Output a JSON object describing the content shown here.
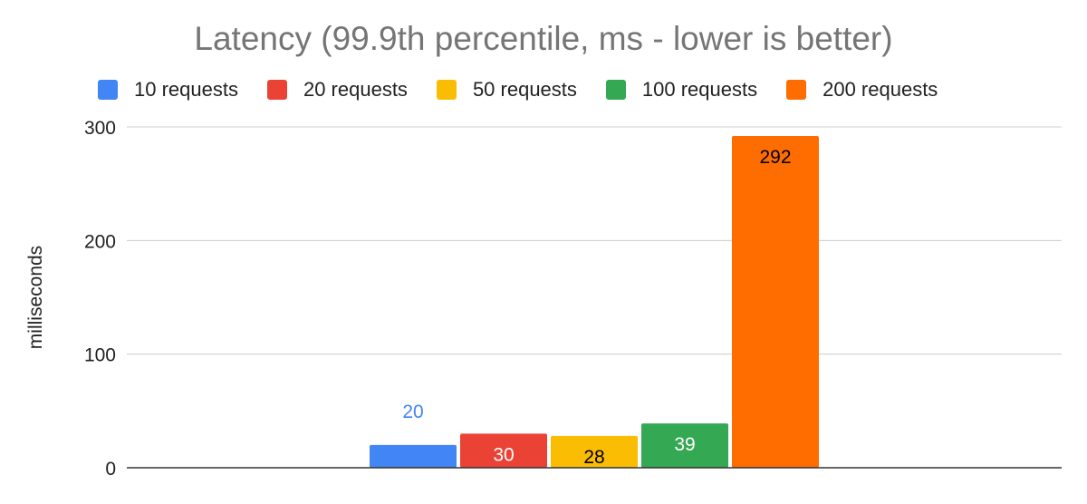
{
  "chart_data": {
    "type": "bar",
    "title": "Latency (99.9th percentile, ms - lower is better)",
    "ylabel": "milliseconds",
    "xlabel": "",
    "ylim": [
      0,
      300
    ],
    "yticks": [
      "0",
      "100",
      "200",
      "300"
    ],
    "grid": true,
    "legend_position": "top",
    "categories": [
      ""
    ],
    "series": [
      {
        "name": "10 requests",
        "values": [
          20
        ],
        "color": "#4285F4",
        "label_color": "#4285F4",
        "label_position": "outside"
      },
      {
        "name": "20 requests",
        "values": [
          30
        ],
        "color": "#EA4335",
        "label_color": "#ffffff",
        "label_position": "inside"
      },
      {
        "name": "50 requests",
        "values": [
          28
        ],
        "color": "#FBBC04",
        "label_color": "#000000",
        "label_position": "inside"
      },
      {
        "name": "100 requests",
        "values": [
          39
        ],
        "color": "#34A853",
        "label_color": "#ffffff",
        "label_position": "inside"
      },
      {
        "name": "200 requests",
        "values": [
          292
        ],
        "color": "#FF6D01",
        "label_color": "#000000",
        "label_position": "inside"
      }
    ]
  }
}
